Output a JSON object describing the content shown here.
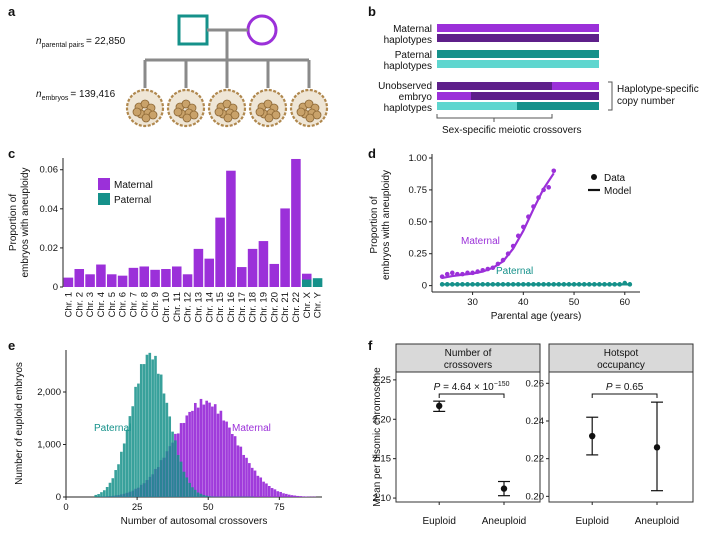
{
  "colors": {
    "maternal": "#9b30d9",
    "maternal_dark": "#5e1f8a",
    "paternal": "#15918a",
    "paternal_light": "#5fd6cf",
    "grey": "#8a8a8a",
    "facet": "#d9d9d9"
  },
  "panel_a": {
    "label": "a",
    "parental_pairs_n": "n",
    "parental_pairs_sub": "parental pairs",
    "parental_pairs_value": "= 22,850",
    "embryos_n": "n",
    "embryos_sub": "embryos",
    "embryos_value": "= 139,416"
  },
  "panel_b": {
    "label": "b",
    "maternal_line1": "Maternal",
    "maternal_line2": "haplotypes",
    "paternal_line1": "Paternal",
    "paternal_line2": "haplotypes",
    "unobserved_line1": "Unobserved",
    "unobserved_line2": "embryo",
    "unobserved_line3": "haplotypes",
    "copy_line1": "Haplotype-specific",
    "copy_line2": "copy number",
    "crossover_label": "Sex-specific meiotic crossovers"
  },
  "chart_data": [
    {
      "panel": "c",
      "type": "bar",
      "ylabel": "Proportion of\nembryos with aneuploidy",
      "ylim": [
        0,
        0.066
      ],
      "yticks": [
        0,
        0.02,
        0.04,
        0.06
      ],
      "ytick_labels": [
        "0",
        "0.02",
        "0.04",
        "0.06"
      ],
      "categories": [
        "Chr. 1",
        "Chr. 2",
        "Chr. 3",
        "Chr. 4",
        "Chr. 5",
        "Chr. 6",
        "Chr. 7",
        "Chr. 8",
        "Chr. 9",
        "Chr. 10",
        "Chr. 11",
        "Chr. 12",
        "Chr. 13",
        "Chr. 14",
        "Chr. 15",
        "Chr. 16",
        "Chr. 17",
        "Chr. 18",
        "Chr. 19",
        "Chr. 20",
        "Chr. 21",
        "Chr. 22",
        "Chr. X",
        "Chr. Y"
      ],
      "series": [
        {
          "name": "Maternal",
          "values": [
            0.0048,
            0.0092,
            0.0065,
            0.0115,
            0.0065,
            0.0058,
            0.0098,
            0.0105,
            0.0088,
            0.0092,
            0.0105,
            0.0065,
            0.0195,
            0.0145,
            0.0355,
            0.0595,
            0.0102,
            0.0195,
            0.0235,
            0.0118,
            0.0402,
            0.0655,
            0.0068,
            0
          ]
        },
        {
          "name": "Paternal",
          "values": [
            0,
            0,
            0,
            0,
            0,
            0,
            0,
            0,
            0,
            0,
            0,
            0,
            0,
            0,
            0,
            0,
            0,
            0,
            0,
            0,
            0,
            0,
            0.0038,
            0.0045
          ]
        }
      ],
      "legend": "top-left"
    },
    {
      "panel": "d",
      "type": "scatter",
      "xlabel": "Parental age (years)",
      "ylabel": "Proportion of\nembryos with aneuploidy",
      "xlim": [
        22,
        63
      ],
      "ylim": [
        -0.05,
        1.0
      ],
      "xticks": [
        30,
        40,
        50,
        60
      ],
      "yticks": [
        0,
        0.25,
        0.5,
        0.75,
        1.0
      ],
      "ytick_labels": [
        "0",
        "0.25",
        "0.50",
        "0.75",
        "1.00"
      ],
      "series": [
        {
          "name": "Maternal",
          "x": [
            24,
            25,
            26,
            27,
            28,
            29,
            30,
            31,
            32,
            33,
            34,
            35,
            36,
            37,
            38,
            39,
            40,
            41,
            42,
            43,
            44,
            45,
            46
          ],
          "y": [
            0.07,
            0.09,
            0.1,
            0.09,
            0.09,
            0.1,
            0.1,
            0.11,
            0.12,
            0.13,
            0.14,
            0.17,
            0.2,
            0.25,
            0.31,
            0.39,
            0.46,
            0.54,
            0.62,
            0.69,
            0.75,
            0.77,
            0.9
          ]
        },
        {
          "name": "Paternal",
          "x": [
            24,
            25,
            26,
            27,
            28,
            29,
            30,
            31,
            32,
            33,
            34,
            35,
            36,
            37,
            38,
            39,
            40,
            41,
            42,
            43,
            44,
            45,
            46,
            47,
            48,
            49,
            50,
            51,
            52,
            53,
            54,
            55,
            56,
            57,
            58,
            59,
            60,
            61
          ],
          "y": [
            0.01,
            0.01,
            0.01,
            0.01,
            0.01,
            0.01,
            0.01,
            0.01,
            0.01,
            0.01,
            0.01,
            0.01,
            0.01,
            0.01,
            0.01,
            0.01,
            0.01,
            0.01,
            0.01,
            0.01,
            0.01,
            0.01,
            0.01,
            0.01,
            0.01,
            0.01,
            0.01,
            0.01,
            0.01,
            0.01,
            0.01,
            0.01,
            0.01,
            0.01,
            0.01,
            0.01,
            0.02,
            0.01
          ]
        }
      ],
      "model": [
        {
          "name": "Maternal",
          "x": [
            24,
            26,
            28,
            30,
            32,
            34,
            36,
            38,
            40,
            42,
            44,
            46
          ],
          "y": [
            0.06,
            0.075,
            0.085,
            0.095,
            0.11,
            0.14,
            0.19,
            0.29,
            0.43,
            0.6,
            0.76,
            0.88
          ]
        },
        {
          "name": "Paternal",
          "x": [
            24,
            61
          ],
          "y": [
            0.01,
            0.01
          ]
        }
      ],
      "legend_data": "Data",
      "legend_model": "Model",
      "label_maternal": "Maternal",
      "label_paternal": "Paternal"
    },
    {
      "panel": "e",
      "type": "bar",
      "xlabel": "Number of autosomal crossovers",
      "ylabel": "Number of euploid embryos",
      "xlim": [
        0,
        90
      ],
      "ylim": [
        0,
        2800
      ],
      "xticks": [
        0,
        25,
        50,
        75
      ],
      "yticks": [
        0,
        1000,
        2000
      ],
      "ytick_labels": [
        "0",
        "1,000",
        "2,000"
      ],
      "series": [
        {
          "name": "Paternal",
          "distribution": "histogram",
          "mean": 29,
          "sd": 6.5,
          "peak": 2720,
          "range": [
            10,
            65
          ]
        },
        {
          "name": "Maternal",
          "distribution": "histogram",
          "mean": 47,
          "sd": 11,
          "peak": 1800,
          "range": [
            12,
            87
          ]
        }
      ]
    },
    {
      "panel": "f1",
      "type": "scatter",
      "facet_title_line1": "Number of",
      "facet_title_line2": "crossovers",
      "ylabel": "Mean per disomic chromosome",
      "categories": [
        "Euploid",
        "Aneuploid"
      ],
      "ylim": [
        2.095,
        2.26
      ],
      "yticks": [
        2.1,
        2.15,
        2.2,
        2.25
      ],
      "ytick_labels": [
        "2.10",
        "2.15",
        "2.20",
        "2.25"
      ],
      "values": [
        2.217,
        2.112
      ],
      "ci_low": [
        2.21,
        2.103
      ],
      "ci_high": [
        2.223,
        2.121
      ],
      "pvalue_lead": "P",
      "pvalue_text": " = 4.64 × 10",
      "pvalue_exp": "−150"
    },
    {
      "panel": "f2",
      "type": "scatter",
      "facet_title_line1": "Hotspot",
      "facet_title_line2": "occupancy",
      "categories": [
        "Euploid",
        "Aneuploid"
      ],
      "ylim": [
        0.197,
        0.266
      ],
      "yticks": [
        0.2,
        0.22,
        0.24,
        0.26
      ],
      "ytick_labels": [
        "0.20",
        "0.22",
        "0.24",
        "0.26"
      ],
      "values": [
        0.232,
        0.226
      ],
      "ci_low": [
        0.222,
        0.203
      ],
      "ci_high": [
        0.242,
        0.25
      ],
      "pvalue_lead": "P",
      "pvalue_text": " = 0.65",
      "pvalue_exp": ""
    }
  ],
  "panel_labels": {
    "c": "c",
    "d": "d",
    "e": "e",
    "f": "f"
  },
  "icons": [
    "male-square-icon",
    "female-circle-icon",
    "embryo-icon"
  ]
}
